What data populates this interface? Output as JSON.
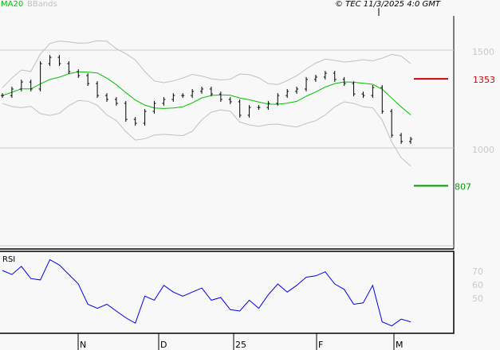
{
  "header": {
    "ma_label": "MA20",
    "bb_label": "BBands",
    "copyright": "© TEC 11/3/2025 4:0 GMT"
  },
  "colors": {
    "ma": "#00c000",
    "bb": "#c0c0c0",
    "bars": "#000000",
    "rsi": "#0000e0",
    "resistance": "#d00000",
    "support": "#00a000"
  },
  "chart_data": [
    {
      "type": "bar-ohlc",
      "ylim": [
        700,
        1700
      ],
      "y_ticks": [
        {
          "value": 1500,
          "label": "1500"
        },
        {
          "value": 1000,
          "label": "1000"
        }
      ],
      "x_ticks": [
        "N",
        "D",
        "25",
        "F",
        "M"
      ],
      "closes": [
        1268,
        1301,
        1337,
        1301,
        1431,
        1463,
        1431,
        1390,
        1370,
        1329,
        1268,
        1248,
        1228,
        1146,
        1126,
        1187,
        1228,
        1248,
        1268,
        1268,
        1289,
        1301,
        1276,
        1248,
        1236,
        1167,
        1207,
        1207,
        1228,
        1268,
        1289,
        1301,
        1350,
        1362,
        1382,
        1350,
        1329,
        1276,
        1268,
        1309,
        1187,
        1065,
        1033,
        1045
      ],
      "overlays": [
        "MA20",
        "BBands"
      ],
      "levels": [
        {
          "value": 1353,
          "label": "1353",
          "color": "#d00000"
        },
        {
          "value": 807,
          "label": "807",
          "color": "#00a000"
        }
      ]
    },
    {
      "type": "line",
      "title": "RSI",
      "ylim": [
        15,
        85
      ],
      "y_ticks": [
        {
          "value": 70,
          "label": "70"
        },
        {
          "value": 60,
          "label": "60"
        },
        {
          "value": 50,
          "label": "50"
        }
      ],
      "values": [
        70,
        67,
        73,
        64,
        63,
        78,
        74,
        67,
        60,
        45,
        42,
        45,
        40,
        35,
        31,
        51,
        48,
        59,
        54,
        51,
        54,
        57,
        48,
        50,
        41,
        40,
        48,
        42,
        52,
        60,
        54,
        59,
        65,
        66,
        69,
        60,
        56,
        45,
        46,
        59,
        32,
        29,
        34,
        32
      ]
    }
  ]
}
